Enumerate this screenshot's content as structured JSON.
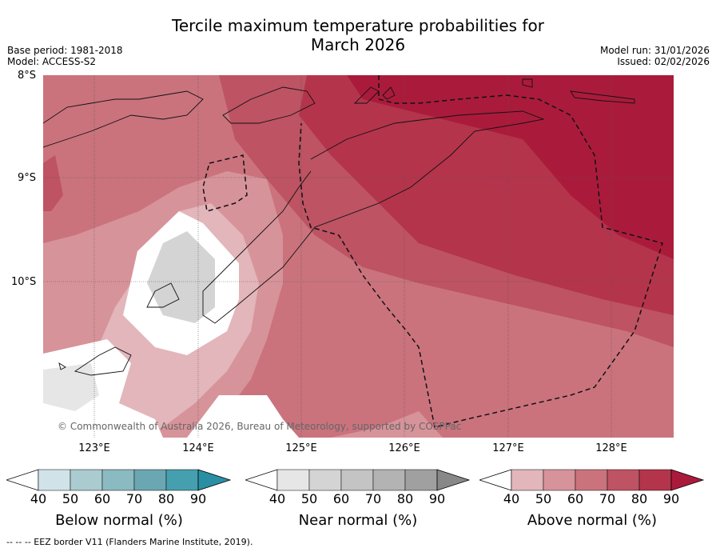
{
  "title_line1": "Tercile maximum temperature probabilities for",
  "title_line2": "March 2026",
  "base_period": "Base period: 1981-2018",
  "model": "Model: ACCESS-S2",
  "model_run": "Model run: 31/01/2026",
  "issued": "Issued: 02/02/2026",
  "lat_labels": [
    "8°S",
    "9°S",
    "10°S"
  ],
  "lon_labels": [
    "123°E",
    "124°E",
    "125°E",
    "126°E",
    "127°E",
    "128°E"
  ],
  "credit": "© Commonwealth of Australia 2026, Bureau of Meteorology, supported by COSPPac",
  "colorbars": [
    {
      "title": "Below normal (%)",
      "ticks": [
        "40",
        "50",
        "60",
        "70",
        "80",
        "90"
      ],
      "colors": [
        "#cfe3e8",
        "#aacbd0",
        "#8bbac3",
        "#6ba7b3",
        "#469fae",
        "#2b8fa3"
      ]
    },
    {
      "title": "Near normal (%)",
      "ticks": [
        "40",
        "50",
        "60",
        "70",
        "80",
        "90"
      ],
      "colors": [
        "#e6e6e6",
        "#d4d4d4",
        "#c4c4c4",
        "#b3b3b3",
        "#a0a0a0",
        "#888888"
      ]
    },
    {
      "title": "Above normal (%)",
      "ticks": [
        "40",
        "50",
        "60",
        "70",
        "80",
        "90"
      ],
      "colors": [
        "#e2b6bb",
        "#d7939a",
        "#ca737d",
        "#bd5363",
        "#b4344c",
        "#aa1b3b"
      ]
    }
  ],
  "footer": "--  --  -- EEZ border V11 (Flanders Marine Institute, 2019)."
}
